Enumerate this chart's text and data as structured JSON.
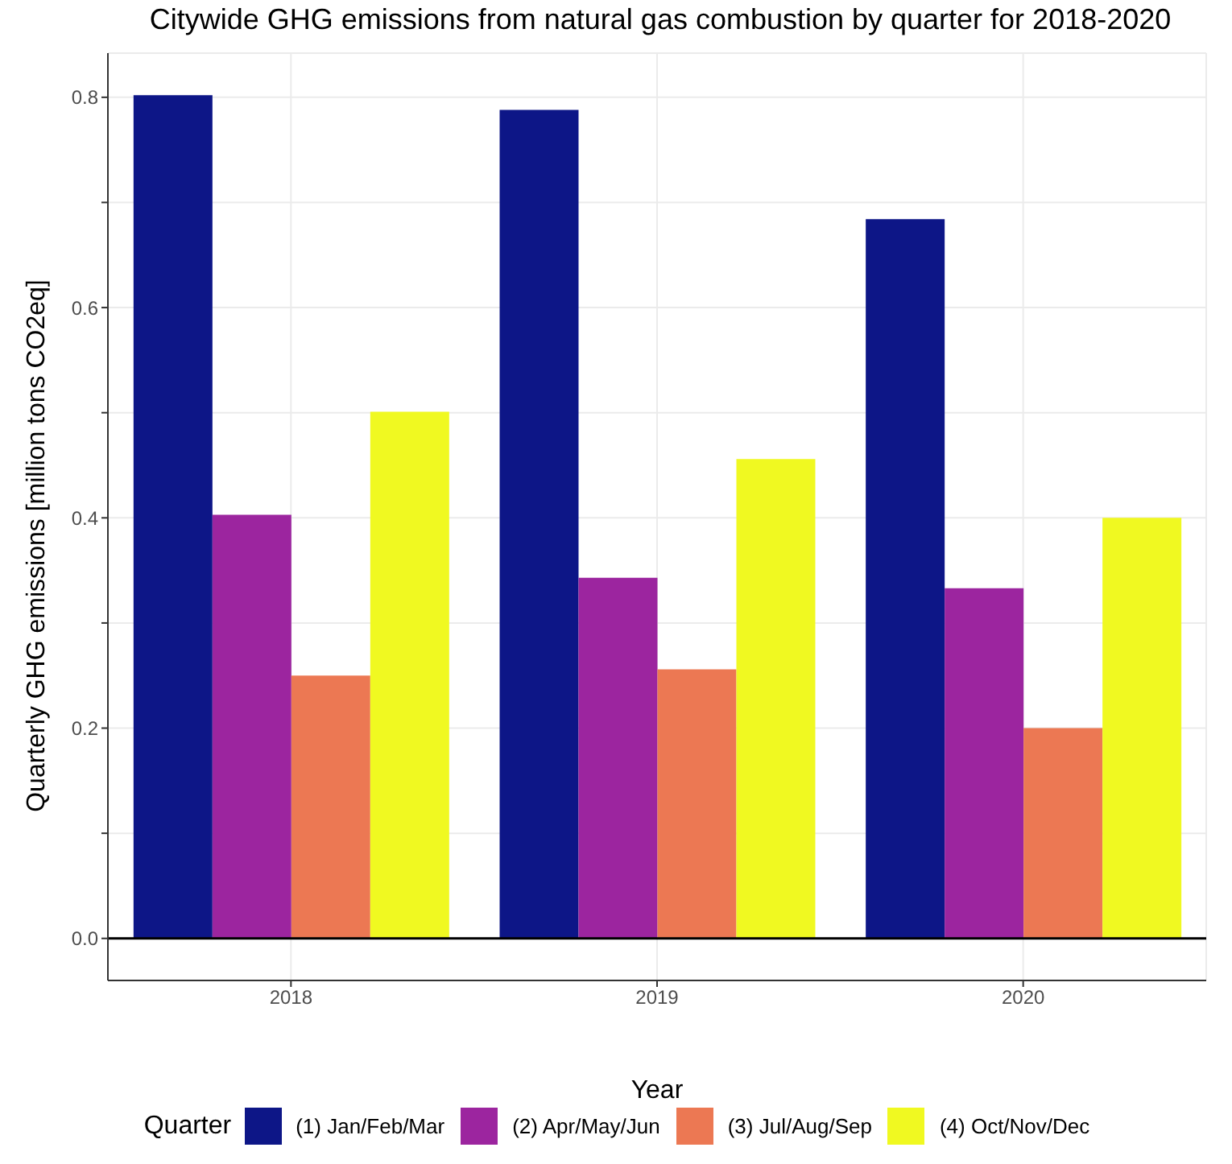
{
  "chart_data": {
    "type": "bar",
    "title": "Citywide GHG emissions from natural gas combustion by quarter for 2018-2020",
    "xlabel": "Year",
    "ylabel": "Quarterly GHG emissions [million tons CO2eq]",
    "legend_title": "Quarter",
    "categories": [
      "2018",
      "2019",
      "2020"
    ],
    "series": [
      {
        "name": "(1) Jan/Feb/Mar",
        "color": "#0d1687",
        "values": [
          0.802,
          0.788,
          0.684
        ]
      },
      {
        "name": "(2) Apr/May/Jun",
        "color": "#9c259f",
        "values": [
          0.403,
          0.343,
          0.333
        ]
      },
      {
        "name": "(3) Jul/Aug/Sep",
        "color": "#ec7853",
        "values": [
          0.25,
          0.256,
          0.2
        ]
      },
      {
        "name": "(4) Oct/Nov/Dec",
        "color": "#f0f921",
        "values": [
          0.501,
          0.456,
          0.4
        ]
      }
    ],
    "ylim": [
      -0.04,
      0.842
    ],
    "yticks": [
      "0.0",
      {
        "value": 0.1,
        "label": null
      },
      0.2,
      {
        "value": 0.3,
        "label": null
      },
      0.4,
      {
        "value": 0.5,
        "label": null
      },
      0.6,
      {
        "value": 0.7,
        "label": null
      },
      0.8
    ],
    "ref_lines": [
      {
        "axis": "y",
        "value": 0,
        "color": "#000000"
      }
    ],
    "grid": true,
    "legend": "bottom"
  }
}
